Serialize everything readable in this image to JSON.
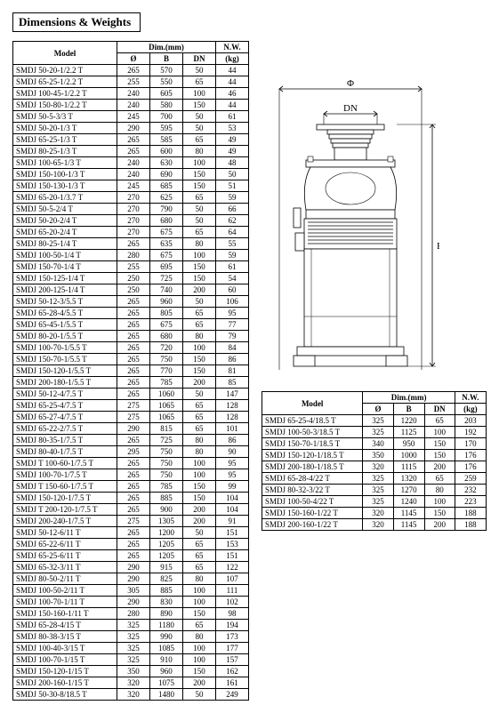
{
  "section_title": "Dimensions & Weights",
  "table_headers": {
    "model": "Model",
    "dim_group": "Dim.(mm)",
    "diameter": "Ø",
    "b": "B",
    "dn": "DN",
    "nw_group": "N.W.",
    "kg": "(kg)"
  },
  "diagram_labels": {
    "phi": "Φ",
    "dn": "DN",
    "b": "B"
  },
  "main_rows": [
    {
      "m": "SMDJ 50-20-1/2.2 T",
      "d": "265",
      "b": "570",
      "dn": "50",
      "w": "44"
    },
    {
      "m": "SMDJ 65-25-1/2.2 T",
      "d": "255",
      "b": "550",
      "dn": "65",
      "w": "44"
    },
    {
      "m": "SMDJ 100-45-1/2.2 T",
      "d": "240",
      "b": "605",
      "dn": "100",
      "w": "46"
    },
    {
      "m": "SMDJ 150-80-1/2.2 T",
      "d": "240",
      "b": "580",
      "dn": "150",
      "w": "44"
    },
    {
      "m": "SMDJ 50-5-3/3 T",
      "d": "245",
      "b": "700",
      "dn": "50",
      "w": "61"
    },
    {
      "m": "SMDJ 50-20-1/3 T",
      "d": "290",
      "b": "595",
      "dn": "50",
      "w": "53"
    },
    {
      "m": "SMDJ 65-25-1/3 T",
      "d": "265",
      "b": "585",
      "dn": "65",
      "w": "49"
    },
    {
      "m": "SMDJ 80-25-1/3 T",
      "d": "265",
      "b": "600",
      "dn": "80",
      "w": "49"
    },
    {
      "m": "SMDJ 100-65-1/3 T",
      "d": "240",
      "b": "630",
      "dn": "100",
      "w": "48"
    },
    {
      "m": "SMDJ 150-100-1/3 T",
      "d": "240",
      "b": "690",
      "dn": "150",
      "w": "50"
    },
    {
      "m": "SMDJ 150-130-1/3 T",
      "d": "245",
      "b": "685",
      "dn": "150",
      "w": "51"
    },
    {
      "m": "SMDJ 65-20-1/3.7 T",
      "d": "270",
      "b": "625",
      "dn": "65",
      "w": "59"
    },
    {
      "m": "SMDJ 50-5-2/4 T",
      "d": "270",
      "b": "790",
      "dn": "50",
      "w": "66"
    },
    {
      "m": "SMDJ 50-20-2/4 T",
      "d": "270",
      "b": "680",
      "dn": "50",
      "w": "62"
    },
    {
      "m": "SMDJ 65-20-2/4 T",
      "d": "270",
      "b": "675",
      "dn": "65",
      "w": "64"
    },
    {
      "m": "SMDJ 80-25-1/4 T",
      "d": "265",
      "b": "635",
      "dn": "80",
      "w": "55"
    },
    {
      "m": "SMDJ 100-50-1/4 T",
      "d": "280",
      "b": "675",
      "dn": "100",
      "w": "59"
    },
    {
      "m": "SMDJ 150-70-1/4 T",
      "d": "255",
      "b": "695",
      "dn": "150",
      "w": "61"
    },
    {
      "m": "SMDJ 150-125-1/4 T",
      "d": "250",
      "b": "725",
      "dn": "150",
      "w": "54"
    },
    {
      "m": "SMDJ 200-125-1/4 T",
      "d": "250",
      "b": "740",
      "dn": "200",
      "w": "60"
    },
    {
      "m": "SMDJ 50-12-3/5.5 T",
      "d": "265",
      "b": "960",
      "dn": "50",
      "w": "106"
    },
    {
      "m": "SMDJ 65-28-4/5.5 T",
      "d": "265",
      "b": "805",
      "dn": "65",
      "w": "95"
    },
    {
      "m": "SMDJ 65-45-1/5.5 T",
      "d": "265",
      "b": "675",
      "dn": "65",
      "w": "77"
    },
    {
      "m": "SMDJ 80-20-1/5.5 T",
      "d": "265",
      "b": "680",
      "dn": "80",
      "w": "79"
    },
    {
      "m": "SMDJ 100-70-1/5.5 T",
      "d": "265",
      "b": "720",
      "dn": "100",
      "w": "84"
    },
    {
      "m": "SMDJ 150-70-1/5.5 T",
      "d": "265",
      "b": "750",
      "dn": "150",
      "w": "86"
    },
    {
      "m": "SMDJ 150-120-1/5.5 T",
      "d": "265",
      "b": "770",
      "dn": "150",
      "w": "81"
    },
    {
      "m": "SMDJ 200-180-1/5.5 T",
      "d": "265",
      "b": "785",
      "dn": "200",
      "w": "85"
    },
    {
      "m": "SMDJ 50-12-4/7.5 T",
      "d": "265",
      "b": "1060",
      "dn": "50",
      "w": "147"
    },
    {
      "m": "SMDJ 65-25-4/7.5 T",
      "d": "275",
      "b": "1065",
      "dn": "65",
      "w": "128"
    },
    {
      "m": "SMDJ 65-27-4/7.5 T",
      "d": "275",
      "b": "1065",
      "dn": "65",
      "w": "128"
    },
    {
      "m": "SMDJ 65-22-2/7.5 T",
      "d": "290",
      "b": "815",
      "dn": "65",
      "w": "101"
    },
    {
      "m": "SMDJ 80-35-1/7.5 T",
      "d": "265",
      "b": "725",
      "dn": "80",
      "w": "86"
    },
    {
      "m": "SMDJ 80-40-1/7.5 T",
      "d": "295",
      "b": "750",
      "dn": "80",
      "w": "90"
    },
    {
      "m": "SMDJ T 100-60-1/7.5 T",
      "d": "265",
      "b": "750",
      "dn": "100",
      "w": "95"
    },
    {
      "m": "SMDJ 100-70-1/7.5 T",
      "d": "265",
      "b": "750",
      "dn": "100",
      "w": "95"
    },
    {
      "m": "SMDJ T 150-60-1/7.5 T",
      "d": "265",
      "b": "785",
      "dn": "150",
      "w": "99"
    },
    {
      "m": "SMDJ 150-120-1/7.5 T",
      "d": "265",
      "b": "885",
      "dn": "150",
      "w": "104"
    },
    {
      "m": "SMDJ T 200-120-1/7.5 T",
      "d": "265",
      "b": "900",
      "dn": "200",
      "w": "104"
    },
    {
      "m": "SMDJ 200-240-1/7.5 T",
      "d": "275",
      "b": "1305",
      "dn": "200",
      "w": "91"
    },
    {
      "m": "SMDJ 50-12-6/11 T",
      "d": "265",
      "b": "1200",
      "dn": "50",
      "w": "151"
    },
    {
      "m": "SMDJ 65-22-6/11 T",
      "d": "265",
      "b": "1205",
      "dn": "65",
      "w": "153"
    },
    {
      "m": "SMDJ 65-25-6/11 T",
      "d": "265",
      "b": "1205",
      "dn": "65",
      "w": "151"
    },
    {
      "m": "SMDJ 65-32-3/11 T",
      "d": "290",
      "b": "915",
      "dn": "65",
      "w": "122"
    },
    {
      "m": "SMDJ 80-50-2/11 T",
      "d": "290",
      "b": "825",
      "dn": "80",
      "w": "107"
    },
    {
      "m": "SMDJ 100-50-2/11 T",
      "d": "305",
      "b": "885",
      "dn": "100",
      "w": "111"
    },
    {
      "m": "SMDJ 100-70-1/11 T",
      "d": "290",
      "b": "830",
      "dn": "100",
      "w": "102"
    },
    {
      "m": "SMDJ 150-160-1/11 T",
      "d": "280",
      "b": "890",
      "dn": "150",
      "w": "98"
    },
    {
      "m": "SMDJ 65-28-4/15 T",
      "d": "325",
      "b": "1180",
      "dn": "65",
      "w": "194"
    },
    {
      "m": "SMDJ 80-38-3/15 T",
      "d": "325",
      "b": "990",
      "dn": "80",
      "w": "173"
    },
    {
      "m": "SMDJ 100-40-3/15 T",
      "d": "325",
      "b": "1085",
      "dn": "100",
      "w": "177"
    },
    {
      "m": "SMDJ 100-70-1/15 T",
      "d": "325",
      "b": "910",
      "dn": "100",
      "w": "157"
    },
    {
      "m": "SMDJ 150-120-1/15 T",
      "d": "350",
      "b": "960",
      "dn": "150",
      "w": "162"
    },
    {
      "m": "SMDJ 200-160-1/15 T",
      "d": "320",
      "b": "1075",
      "dn": "200",
      "w": "161"
    },
    {
      "m": "SMDJ 50-30-8/18.5 T",
      "d": "320",
      "b": "1480",
      "dn": "50",
      "w": "249"
    }
  ],
  "sub_rows": [
    {
      "m": "SMDJ 65-25-4/18.5 T",
      "d": "325",
      "b": "1220",
      "dn": "65",
      "w": "203"
    },
    {
      "m": "SMDJ 100-50-3/18.5 T",
      "d": "325",
      "b": "1125",
      "dn": "100",
      "w": "192"
    },
    {
      "m": "SMDJ 150-70-1/18.5 T",
      "d": "340",
      "b": "950",
      "dn": "150",
      "w": "170"
    },
    {
      "m": "SMDJ 150-120-1/18.5 T",
      "d": "350",
      "b": "1000",
      "dn": "150",
      "w": "176"
    },
    {
      "m": "SMDJ 200-180-1/18.5 T",
      "d": "320",
      "b": "1115",
      "dn": "200",
      "w": "176"
    },
    {
      "m": "SMDJ 65-28-4/22 T",
      "d": "325",
      "b": "1320",
      "dn": "65",
      "w": "259"
    },
    {
      "m": "SMDJ 80-32-3/22 T",
      "d": "325",
      "b": "1270",
      "dn": "80",
      "w": "232"
    },
    {
      "m": "SMDJ 100-50-4/22 T",
      "d": "325",
      "b": "1240",
      "dn": "100",
      "w": "223"
    },
    {
      "m": "SMDJ 150-160-1/22 T",
      "d": "320",
      "b": "1145",
      "dn": "150",
      "w": "188"
    },
    {
      "m": "SMDJ 200-160-1/22 T",
      "d": "320",
      "b": "1145",
      "dn": "200",
      "w": "188"
    }
  ]
}
